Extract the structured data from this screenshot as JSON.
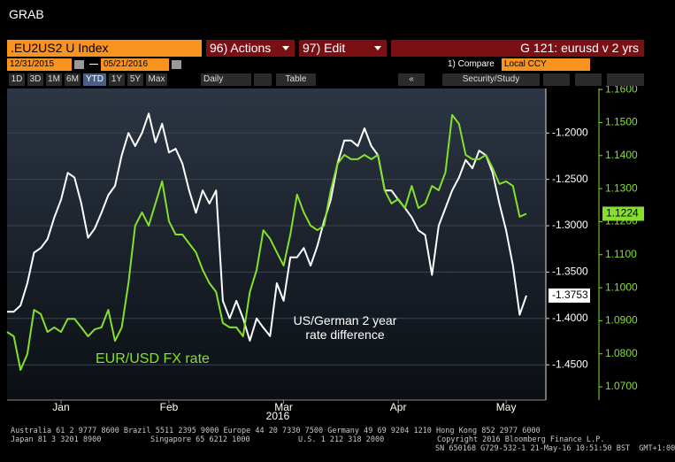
{
  "window": {
    "title": "GRAB"
  },
  "toolbar": {
    "security": ".EU2US2 U Index",
    "actions": "96) Actions",
    "edit": "97) Edit",
    "chart_name": "G 121: eurusd v 2 yrs",
    "start_date": "12/31/2015",
    "end_date": "05/21/2016",
    "compare": "1) Compare",
    "currency": "Local CCY",
    "periods": [
      "1D",
      "3D",
      "1M",
      "6M",
      "YTD",
      "1Y",
      "5Y",
      "Max"
    ],
    "frequency": "Daily",
    "table": "Table",
    "security_study": "Security/Study"
  },
  "chart_data": {
    "type": "line",
    "categories": [
      null,
      null,
      null,
      null,
      null,
      null,
      null,
      null,
      "Jan",
      null,
      null,
      null,
      null,
      null,
      null,
      null,
      null,
      null,
      null,
      null,
      null,
      null,
      null,
      null,
      "Feb",
      null,
      null,
      null,
      null,
      null,
      null,
      null,
      null,
      null,
      null,
      null,
      null,
      null,
      null,
      null,
      null,
      "Mar",
      null,
      null,
      null,
      null,
      null,
      null,
      null,
      null,
      null,
      null,
      null,
      null,
      null,
      null,
      null,
      null,
      "Apr",
      null,
      null,
      null,
      null,
      null,
      null,
      null,
      null,
      null,
      null,
      null,
      null,
      null,
      null,
      null,
      "May",
      null,
      null,
      null
    ],
    "x_sublabel": "2016",
    "series": [
      {
        "name": "US/German 2 year rate difference",
        "color": "#ffffff",
        "axis": "y",
        "values": [
          -1.3927,
          -1.3927,
          -1.386,
          -1.362,
          -1.329,
          -1.324,
          -1.3145,
          -1.291,
          -1.272,
          -1.243,
          -1.248,
          -1.276,
          -1.313,
          -1.303,
          -1.286,
          -1.267,
          -1.257,
          -1.224,
          -1.2,
          -1.214,
          -1.2,
          -1.179,
          -1.21,
          -1.19,
          -1.221,
          -1.217,
          -1.233,
          -1.262,
          -1.286,
          -1.262,
          -1.276,
          -1.262,
          -1.381,
          -1.4,
          -1.381,
          -1.4,
          -1.424,
          -1.4,
          -1.41,
          -1.419,
          -1.362,
          -1.381,
          -1.334,
          -1.334,
          -1.324,
          -1.343,
          -1.322,
          -1.295,
          -1.272,
          -1.233,
          -1.208,
          -1.208,
          -1.214,
          -1.195,
          -1.214,
          -1.224,
          -1.262,
          -1.262,
          -1.272,
          -1.281,
          -1.291,
          -1.305,
          -1.31,
          -1.353,
          -1.3,
          -1.281,
          -1.262,
          -1.248,
          -1.229,
          -1.238,
          -1.219,
          -1.224,
          -1.243,
          -1.276,
          -1.305,
          -1.343,
          -1.396,
          -1.3753
        ]
      },
      {
        "name": "EUR/USD FX rate",
        "color": "#84e02c",
        "axis": "y2",
        "values": [
          1.0866,
          1.0853,
          1.0751,
          1.0799,
          1.0933,
          1.092,
          1.0866,
          1.088,
          1.0866,
          1.0906,
          1.0906,
          1.088,
          1.0853,
          1.0874,
          1.088,
          1.0933,
          1.0839,
          1.088,
          1.1014,
          1.1188,
          1.1228,
          1.1188,
          1.1255,
          1.1322,
          1.1201,
          1.1161,
          1.1161,
          1.1134,
          1.1107,
          1.1054,
          1.1014,
          1.0987,
          1.0893,
          1.088,
          1.088,
          1.0853,
          1.0987,
          1.1054,
          1.1174,
          1.1148,
          1.1107,
          1.1067,
          1.1161,
          1.1282,
          1.1228,
          1.1188,
          1.1174,
          1.1188,
          1.1295,
          1.1375,
          1.1402,
          1.1389,
          1.1389,
          1.1402,
          1.1389,
          1.1402,
          1.1295,
          1.1255,
          1.1268,
          1.1241,
          1.1308,
          1.1241,
          1.1255,
          1.1308,
          1.1295,
          1.1349,
          1.1523,
          1.1496,
          1.1402,
          1.1389,
          1.1389,
          1.1402,
          1.1362,
          1.1314,
          1.1322,
          1.1308,
          1.1215,
          1.1224
        ]
      }
    ],
    "ylim": [
      -1.488,
      -1.152
    ],
    "yticks": [
      {
        "value": -1.2,
        "label": "-1.2000"
      },
      {
        "value": -1.25,
        "label": "-1.2500"
      },
      {
        "value": -1.3,
        "label": "-1.3000"
      },
      {
        "value": -1.35,
        "label": "-1.3500"
      },
      {
        "value": -1.4,
        "label": "-1.4000"
      },
      {
        "value": -1.45,
        "label": "-1.4500"
      }
    ],
    "y2lim": [
      1.066,
      1.1603
    ],
    "y2ticks": [
      {
        "value": 1.07,
        "label": "1.0700"
      },
      {
        "value": 1.08,
        "label": "1.0800"
      },
      {
        "value": 1.09,
        "label": "1.0900"
      },
      {
        "value": 1.1,
        "label": "1.1000"
      },
      {
        "value": 1.11,
        "label": "1.1100"
      },
      {
        "value": 1.12,
        "label": "1.1200"
      },
      {
        "value": 1.13,
        "label": "1.1300"
      },
      {
        "value": 1.14,
        "label": "1.1400"
      },
      {
        "value": 1.15,
        "label": "1.1500"
      },
      {
        "value": 1.16,
        "label": "1.1600"
      }
    ],
    "grid": true
  },
  "footer": {
    "line1": "Australia 61 2 9777 8600 Brazil 5511 2395 9000 Europe 44 20 7330 7500 Germany 49 69 9204 1210 Hong Kong 852 2977 6000",
    "line2": [
      "Japan 81 3 3201 8900",
      "Singapore 65 6212 1000",
      "U.S. 1 212 318 2000",
      "Copyright 2016 Bloomberg Finance L.P."
    ],
    "line3": "SN 650168 G729-532-1 21-May-16 10:51:50 BST  GMT+1:00"
  }
}
